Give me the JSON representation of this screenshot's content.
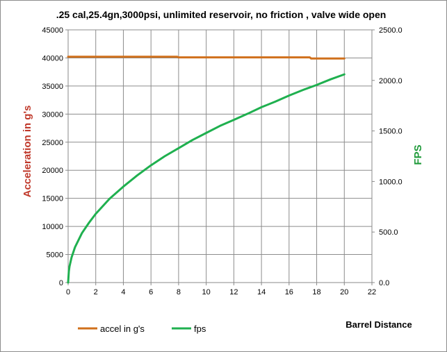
{
  "chart_data": {
    "type": "line",
    "title": ".25 cal,25.4gn,3000psi, unlimited reservoir, no friction , valve wide open",
    "xlabel": "Barrel Distance",
    "ylabel_left": "Acceleration in g's",
    "ylabel_right": "FPS",
    "xlim": [
      0,
      22
    ],
    "ylim_left": [
      0,
      45000
    ],
    "ylim_right": [
      0,
      2500
    ],
    "x_ticks": [
      "0",
      "2",
      "4",
      "6",
      "8",
      "10",
      "12",
      "14",
      "16",
      "18",
      "20",
      "22"
    ],
    "y_left_ticks": [
      "0",
      "5000",
      "10000",
      "15000",
      "20000",
      "25000",
      "30000",
      "35000",
      "40000",
      "45000"
    ],
    "y_right_ticks": [
      "0.0",
      "500.0",
      "1000.0",
      "1500.0",
      "2000.0",
      "2500.0"
    ],
    "grid": true,
    "legend_position": "bottom-left",
    "series": [
      {
        "name": "accel  in  g's",
        "axis": "left",
        "color": "#d0701c",
        "x": [
          0,
          7.9,
          8,
          17.5,
          17.6,
          20
        ],
        "values": [
          40200,
          40200,
          40100,
          40100,
          39900,
          39900
        ]
      },
      {
        "name": "fps",
        "axis": "right",
        "color": "#1fb04f",
        "x": [
          0,
          0.05,
          0.1,
          0.25,
          0.5,
          1,
          1.5,
          2,
          3,
          4,
          5,
          6,
          7,
          8,
          9,
          10,
          11,
          12,
          13,
          14,
          15,
          16,
          17,
          18,
          19,
          20
        ],
        "values": [
          0,
          110,
          160,
          250,
          350,
          490,
          590,
          680,
          830,
          950,
          1060,
          1160,
          1250,
          1330,
          1410,
          1480,
          1550,
          1610,
          1670,
          1735,
          1790,
          1850,
          1905,
          1955,
          2010,
          2060
        ]
      }
    ]
  }
}
